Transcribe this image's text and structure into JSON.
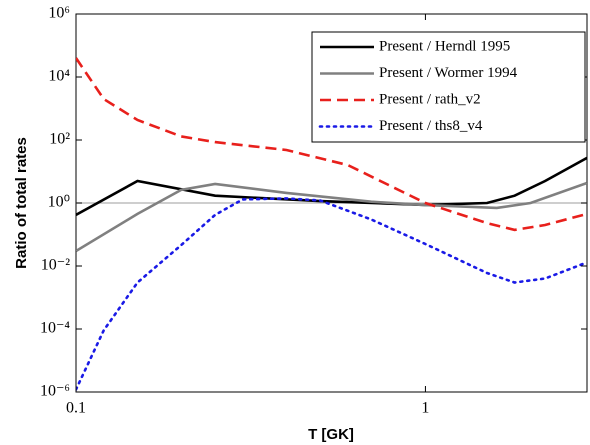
{
  "chart_data": {
    "type": "line",
    "x_label": "T [GK]",
    "y_label": "Ratio of total rates",
    "xscale": "log",
    "yscale": "log",
    "xlim": [
      0.1,
      2.9
    ],
    "ylim": [
      1e-06,
      1000000.0
    ],
    "xticks": [
      0.1,
      1
    ],
    "yticks": [
      {
        "value": 1e-06,
        "label": "10⁻⁶"
      },
      {
        "value": 0.0001,
        "label": "10⁻⁴"
      },
      {
        "value": 0.01,
        "label": "10⁻²"
      },
      {
        "value": 1,
        "label": "10⁰"
      },
      {
        "value": 100,
        "label": "10²"
      },
      {
        "value": 10000,
        "label": "10⁴"
      },
      {
        "value": 1000000,
        "label": "10⁶"
      }
    ],
    "hline": 1,
    "hline_color": "#b0b0b0",
    "legend": "upper right",
    "series": [
      {
        "name": "Present / Herndl 1995",
        "color": "#000000",
        "dash": "solid",
        "x": [
          0.1,
          0.15,
          0.25,
          0.5,
          1,
          1.5,
          1.8,
          2.2,
          2.9
        ],
        "values": [
          0.42,
          5,
          1.7,
          1.15,
          0.87,
          1,
          1.7,
          5,
          27
        ]
      },
      {
        "name": "Present / Wormer 1994",
        "color": "#808080",
        "dash": "solid",
        "x": [
          0.1,
          0.15,
          0.2,
          0.25,
          0.4,
          0.7,
          1,
          1.6,
          2,
          2.9
        ],
        "values": [
          0.03,
          0.45,
          2.6,
          4,
          2.1,
          1.1,
          0.86,
          0.7,
          1,
          4.3
        ]
      },
      {
        "name": "Present / rath_v2",
        "color": "#e8201c",
        "dash": "dashed",
        "x": [
          0.1,
          0.12,
          0.15,
          0.2,
          0.25,
          0.4,
          0.6,
          1,
          1.5,
          1.8,
          2.2,
          2.9
        ],
        "values": [
          40000,
          2000,
          430,
          130,
          86,
          48,
          16,
          1,
          0.23,
          0.14,
          0.2,
          0.45
        ]
      },
      {
        "name": "Present / ths8_v4",
        "color": "#1a1ae6",
        "dash": "dotted",
        "x": [
          0.1,
          0.12,
          0.15,
          0.2,
          0.25,
          0.3,
          0.4,
          0.5,
          0.7,
          1,
          1.5,
          1.8,
          2.2,
          2.9
        ],
        "values": [
          1.2e-06,
          9e-05,
          0.003,
          0.046,
          0.42,
          1.3,
          1.4,
          1.2,
          0.3,
          0.05,
          0.006,
          0.003,
          0.004,
          0.013
        ]
      }
    ]
  }
}
